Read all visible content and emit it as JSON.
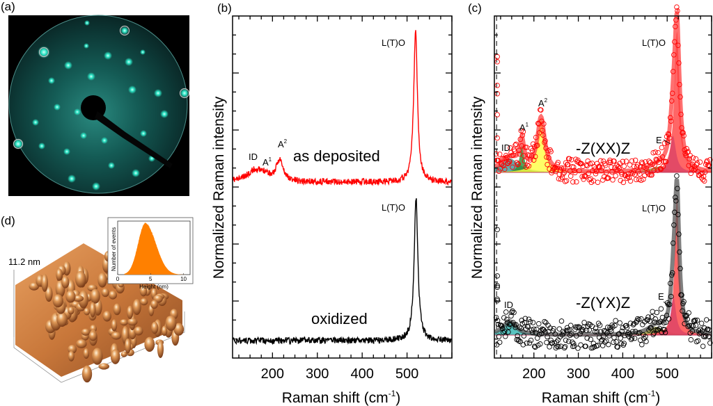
{
  "panels": {
    "a": {
      "label": "(a)",
      "description": "LEED diffraction pattern",
      "accent": "#2ed8c0"
    },
    "b": {
      "label": "(b)"
    },
    "c": {
      "label": "(c)"
    },
    "d": {
      "label": "(d)",
      "height_scale": "11.2 nm",
      "surface_color": "#c8773a"
    }
  },
  "chart_data": [
    {
      "id": "b",
      "type": "line",
      "xlabel": "Raman shift (cm",
      "xlabel_sup": "-1",
      "xlabel_end": ")",
      "ylabel": "Normalized Raman intensity",
      "xlim": [
        111,
        600
      ],
      "xticks": [
        200,
        300,
        400,
        500
      ],
      "xtick_labels": [
        "200",
        "300",
        "400",
        "500"
      ],
      "grid": false,
      "series": [
        {
          "name": "as deposited",
          "color": "#ff0000",
          "style": "line",
          "baseline": 0.0,
          "peaks": [
            {
              "name": "ID",
              "center": 162,
              "height": 0.08,
              "width": 22
            },
            {
              "name": "A1",
              "center": 185,
              "height": 0.03,
              "width": 8
            },
            {
              "name": "A2",
              "center": 216,
              "height": 0.14,
              "width": 9
            },
            {
              "name": "L(T)O",
              "center": 519,
              "height": 1.0,
              "width": 5
            }
          ]
        },
        {
          "name": "oxidized",
          "color": "#000000",
          "style": "line",
          "baseline": 0.0,
          "peaks": [
            {
              "name": "L(T)O",
              "center": 520,
              "height": 1.0,
              "width": 5
            }
          ]
        }
      ],
      "annotations": [
        {
          "text": "ID",
          "series": 0
        },
        {
          "text": "A",
          "sup": "1",
          "series": 0
        },
        {
          "text": "A",
          "sup": "2",
          "series": 0
        },
        {
          "text": "as deposited",
          "series": 0
        },
        {
          "text": "L(T)O",
          "series": 0
        },
        {
          "text": "L(T)O",
          "series": 1
        },
        {
          "text": "oxidized",
          "series": 1
        }
      ]
    },
    {
      "id": "c",
      "type": "scatter",
      "xlabel": "Raman shift (cm",
      "xlabel_sup": "-1",
      "xlabel_end": ")",
      "ylabel": "Normalized Raman intensity",
      "xlim": [
        111,
        600
      ],
      "xticks": [
        200,
        300,
        400,
        500
      ],
      "xtick_labels": [
        "200",
        "300",
        "400",
        "500"
      ],
      "grid": false,
      "dashed_vline_x": 116,
      "series": [
        {
          "name": "-Z(XX)Z",
          "color": "#ff0000",
          "fit_color": "#ff4040",
          "style": "open-circles+fit",
          "components": [
            {
              "name": "ID",
              "center": 145,
              "height": 0.1,
              "width": 25,
              "fill": "#3a9a9a"
            },
            {
              "name": "A1",
              "center": 173,
              "height": 0.19,
              "width": 6,
              "fill": "#2e8b2e"
            },
            {
              "name": "A2",
              "center": 216,
              "height": 0.38,
              "width": 10,
              "fill": "#ffff40"
            },
            {
              "name": "broad",
              "center": 480,
              "height": 0.04,
              "width": 25,
              "fill": "#8b8b30"
            },
            {
              "name": "E",
              "center": 513,
              "height": 0.26,
              "width": 8,
              "fill": "#5050ff"
            },
            {
              "name": "L(T)O",
              "center": 522,
              "height": 1.0,
              "width": 7,
              "fill": "#ff4040"
            }
          ]
        },
        {
          "name": "-Z(YX)Z",
          "color": "#000000",
          "fit_color": "#555555",
          "style": "open-circles+fit",
          "components": [
            {
              "name": "ID",
              "center": 145,
              "height": 0.1,
              "width": 18,
              "fill": "#2fb5b0"
            },
            {
              "name": "broad",
              "center": 475,
              "height": 0.06,
              "width": 22,
              "fill": "#8b8b30"
            },
            {
              "name": "E",
              "center": 514,
              "height": 0.28,
              "width": 7,
              "fill": "#5050ff"
            },
            {
              "name": "L(T)O",
              "center": 522,
              "height": 1.0,
              "width": 6,
              "fill": "#ff4040"
            }
          ]
        }
      ],
      "annotations": [
        {
          "text": "ID",
          "series": 0
        },
        {
          "text": "A",
          "sup": "1",
          "series": 0
        },
        {
          "text": "A",
          "sup": "2",
          "series": 0
        },
        {
          "text": "-Z(XX)Z",
          "series": 0
        },
        {
          "text": "E",
          "series": 0
        },
        {
          "text": "L(T)O",
          "series": 0
        },
        {
          "text": "ID",
          "series": 1
        },
        {
          "text": "-Z(YX)Z",
          "series": 1
        },
        {
          "text": "E",
          "series": 1
        },
        {
          "text": "L(T)O",
          "series": 1
        }
      ]
    },
    {
      "id": "d-inset",
      "type": "bar",
      "xlabel": "Height (nm)",
      "ylabel": "Number of events",
      "xlim": [
        0,
        11
      ],
      "xticks": [
        0,
        5,
        10
      ],
      "xtick_labels": [
        "0",
        "5",
        "10"
      ],
      "color": "#ff8000",
      "distribution": {
        "mode": 4.2,
        "sigma_left": 1.1,
        "sigma_right": 1.6,
        "min": 1.0,
        "max": 10.2
      }
    }
  ]
}
